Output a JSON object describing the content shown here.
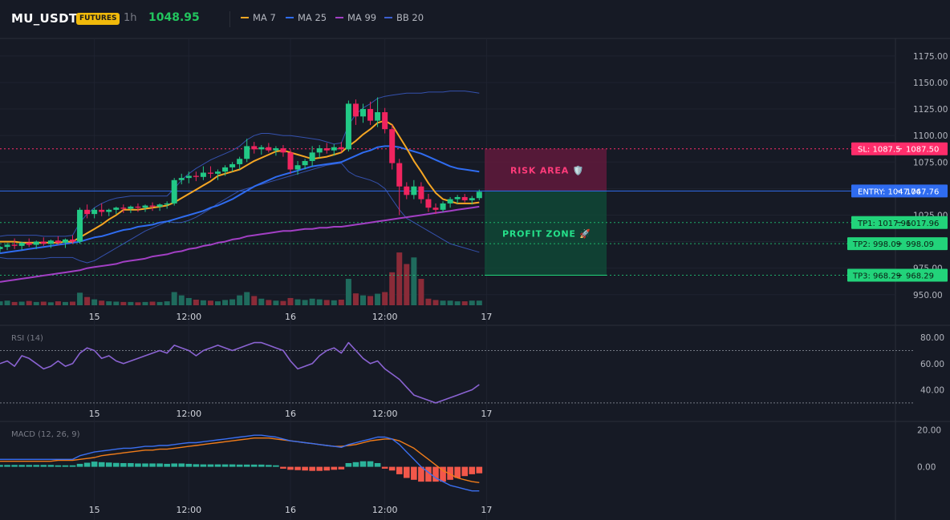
{
  "header": {
    "symbol": "MU_USDT",
    "badge": "FUTURES",
    "interval": "1h",
    "price": "1048.95",
    "legend": [
      {
        "label": "MA 7",
        "color": "#f5a623"
      },
      {
        "label": "MA 25",
        "color": "#2f6cf0"
      },
      {
        "label": "MA 99",
        "color": "#a23fc4"
      },
      {
        "label": "BB 20",
        "color": "#3c5fd0"
      }
    ]
  },
  "colors": {
    "up": "#22c986",
    "down": "#f0245f",
    "vol_up": "#1f6b5d",
    "vol_down": "#8a2b38",
    "rsi": "#8a63d2",
    "macd": "#3b6ff0",
    "signal": "#f07c1a",
    "hist_up": "#2bb39a",
    "hist_down": "#f2574a",
    "sl": "#ff2d6b",
    "entry": "#2f6cf0",
    "tp": "#22d37a"
  },
  "chart_data": [
    {
      "type": "candlestick",
      "title": "MU_USDT 1h",
      "x_ticks": [
        "15",
        "12:00",
        "16",
        "12:00",
        "17"
      ],
      "ylim": [
        940,
        1190
      ],
      "y_ticks": [
        "1175.00",
        "1150.00",
        "1125.00",
        "1100.00",
        "1075.00",
        "1050.00",
        "1025.00",
        "1000.00",
        "975.00",
        "950.00"
      ],
      "candles": [
        [
          993,
          996,
          990,
          995
        ],
        [
          995,
          999,
          992,
          997
        ],
        [
          997,
          1003,
          993,
          996
        ],
        [
          996,
          1000,
          992,
          999
        ],
        [
          999,
          1003,
          995,
          997
        ],
        [
          997,
          1001,
          993,
          1000
        ],
        [
          1000,
          1004,
          996,
          998
        ],
        [
          998,
          1002,
          994,
          1001
        ],
        [
          1001,
          1005,
          997,
          999
        ],
        [
          999,
          1003,
          994,
          1002
        ],
        [
          1002,
          1006,
          998,
          1000
        ],
        [
          1000,
          1032,
          998,
          1030
        ],
        [
          1030,
          1035,
          1022,
          1026
        ],
        [
          1026,
          1032,
          1022,
          1030
        ],
        [
          1030,
          1036,
          1024,
          1028
        ],
        [
          1028,
          1031,
          1024,
          1030
        ],
        [
          1030,
          1033,
          1026,
          1032
        ],
        [
          1032,
          1035,
          1027,
          1031
        ],
        [
          1031,
          1034,
          1027,
          1033
        ],
        [
          1033,
          1036,
          1028,
          1032
        ],
        [
          1032,
          1035,
          1028,
          1034
        ],
        [
          1034,
          1037,
          1029,
          1033
        ],
        [
          1033,
          1036,
          1029,
          1035
        ],
        [
          1035,
          1038,
          1031,
          1036
        ],
        [
          1036,
          1060,
          1034,
          1058
        ],
        [
          1058,
          1064,
          1054,
          1060
        ],
        [
          1060,
          1066,
          1055,
          1062
        ],
        [
          1062,
          1066,
          1057,
          1061
        ],
        [
          1061,
          1071,
          1058,
          1065
        ],
        [
          1065,
          1071,
          1060,
          1064
        ],
        [
          1064,
          1068,
          1058,
          1066
        ],
        [
          1066,
          1072,
          1062,
          1070
        ],
        [
          1070,
          1075,
          1066,
          1073
        ],
        [
          1073,
          1080,
          1068,
          1078
        ],
        [
          1078,
          1097,
          1075,
          1090
        ],
        [
          1090,
          1094,
          1083,
          1087
        ],
        [
          1087,
          1091,
          1082,
          1089
        ],
        [
          1089,
          1093,
          1084,
          1086
        ],
        [
          1086,
          1090,
          1081,
          1088
        ],
        [
          1088,
          1091,
          1080,
          1084
        ],
        [
          1084,
          1087,
          1064,
          1068
        ],
        [
          1068,
          1076,
          1063,
          1072
        ],
        [
          1072,
          1078,
          1068,
          1076
        ],
        [
          1076,
          1090,
          1071,
          1084
        ],
        [
          1084,
          1091,
          1079,
          1088
        ],
        [
          1088,
          1093,
          1083,
          1086
        ],
        [
          1086,
          1092,
          1081,
          1089
        ],
        [
          1089,
          1094,
          1084,
          1087
        ],
        [
          1087,
          1133,
          1085,
          1130
        ],
        [
          1130,
          1134,
          1110,
          1118
        ],
        [
          1118,
          1130,
          1112,
          1125
        ],
        [
          1125,
          1132,
          1110,
          1114
        ],
        [
          1114,
          1136,
          1108,
          1122
        ],
        [
          1122,
          1126,
          1102,
          1106
        ],
        [
          1106,
          1110,
          1068,
          1074
        ],
        [
          1074,
          1078,
          1025,
          1052
        ],
        [
          1052,
          1056,
          1040,
          1044
        ],
        [
          1044,
          1058,
          1040,
          1052
        ],
        [
          1052,
          1056,
          1036,
          1040
        ],
        [
          1040,
          1045,
          1028,
          1032
        ],
        [
          1032,
          1036,
          1026,
          1030
        ],
        [
          1030,
          1038,
          1028,
          1036
        ],
        [
          1036,
          1042,
          1032,
          1040
        ],
        [
          1040,
          1044,
          1036,
          1042
        ],
        [
          1042,
          1045,
          1037,
          1039
        ],
        [
          1039,
          1043,
          1035,
          1041
        ],
        [
          1041,
          1049,
          1039,
          1047
        ]
      ],
      "volume": [
        12,
        14,
        10,
        11,
        13,
        10,
        11,
        9,
        12,
        10,
        11,
        38,
        25,
        18,
        14,
        12,
        11,
        10,
        10,
        9,
        10,
        11,
        10,
        12,
        40,
        30,
        22,
        17,
        15,
        14,
        12,
        16,
        18,
        30,
        40,
        28,
        20,
        16,
        14,
        13,
        22,
        18,
        16,
        20,
        18,
        16,
        15,
        17,
        80,
        36,
        30,
        28,
        35,
        40,
        100,
        160,
        125,
        145,
        80,
        20,
        16,
        14,
        14,
        12,
        12,
        14,
        14
      ],
      "ma7": [
        1000,
        1000,
        1000,
        999,
        999,
        999,
        999,
        999,
        999,
        1000,
        1000,
        1004,
        1008,
        1012,
        1016,
        1021,
        1025,
        1030,
        1030,
        1030,
        1031,
        1032,
        1033,
        1034,
        1037,
        1041,
        1045,
        1049,
        1053,
        1057,
        1062,
        1064,
        1066,
        1068,
        1072,
        1076,
        1079,
        1082,
        1085,
        1086,
        1084,
        1082,
        1080,
        1078,
        1079,
        1080,
        1082,
        1084,
        1090,
        1095,
        1101,
        1106,
        1112,
        1114,
        1110,
        1099,
        1088,
        1076,
        1066,
        1055,
        1046,
        1040,
        1038,
        1036,
        1036,
        1036,
        1037
      ],
      "ma25": [
        989,
        990,
        991,
        992,
        993,
        994,
        995,
        996,
        997,
        998,
        999,
        1000,
        1002,
        1004,
        1005,
        1007,
        1009,
        1011,
        1012,
        1014,
        1015,
        1016,
        1018,
        1019,
        1021,
        1023,
        1025,
        1027,
        1029,
        1032,
        1034,
        1037,
        1040,
        1044,
        1048,
        1052,
        1055,
        1058,
        1061,
        1063,
        1065,
        1067,
        1069,
        1071,
        1072,
        1073,
        1074,
        1075,
        1078,
        1081,
        1084,
        1086,
        1089,
        1090,
        1090,
        1089,
        1087,
        1085,
        1083,
        1080,
        1077,
        1074,
        1071,
        1069,
        1068,
        1067,
        1066
      ],
      "ma99": [
        962,
        963,
        964,
        965,
        966,
        967,
        968,
        969,
        970,
        971,
        972,
        973,
        975,
        976,
        977,
        978,
        979,
        981,
        982,
        983,
        984,
        986,
        987,
        988,
        990,
        991,
        993,
        994,
        996,
        997,
        999,
        1000,
        1002,
        1003,
        1005,
        1006,
        1007,
        1008,
        1009,
        1010,
        1010,
        1011,
        1012,
        1012,
        1013,
        1013,
        1014,
        1014,
        1015,
        1016,
        1017,
        1018,
        1019,
        1020,
        1021,
        1022,
        1023,
        1024,
        1025,
        1026,
        1027,
        1028,
        1029,
        1030,
        1031,
        1032,
        1033
      ],
      "bb_upper": [
        1005,
        1006,
        1006,
        1006,
        1006,
        1006,
        1005,
        1005,
        1005,
        1005,
        1006,
        1018,
        1026,
        1032,
        1036,
        1039,
        1041,
        1042,
        1043,
        1043,
        1043,
        1043,
        1043,
        1043,
        1050,
        1058,
        1064,
        1069,
        1073,
        1077,
        1080,
        1083,
        1086,
        1090,
        1096,
        1100,
        1102,
        1102,
        1101,
        1100,
        1100,
        1099,
        1098,
        1097,
        1096,
        1094,
        1092,
        1093,
        1110,
        1120,
        1126,
        1130,
        1135,
        1137,
        1138,
        1139,
        1140,
        1140,
        1140,
        1141,
        1141,
        1141,
        1142,
        1142,
        1142,
        1141,
        1140
      ],
      "bb_lower": [
        985,
        984,
        984,
        984,
        984,
        984,
        984,
        985,
        985,
        985,
        985,
        982,
        980,
        982,
        986,
        990,
        994,
        998,
        1002,
        1006,
        1010,
        1013,
        1016,
        1019,
        1018,
        1018,
        1020,
        1023,
        1027,
        1031,
        1036,
        1040,
        1044,
        1048,
        1050,
        1052,
        1054,
        1056,
        1058,
        1060,
        1062,
        1064,
        1066,
        1068,
        1070,
        1072,
        1073,
        1074,
        1066,
        1062,
        1060,
        1058,
        1055,
        1050,
        1040,
        1030,
        1022,
        1018,
        1014,
        1010,
        1006,
        1002,
        998,
        996,
        994,
        992,
        990
      ],
      "levels": {
        "sl": {
          "label": "SL: 1087.5",
          "price": "1087.50",
          "value": 1087.5
        },
        "entry": {
          "label": "ENTRY: 1047.76",
          "price": "1047.76",
          "value": 1047.76
        },
        "tp1": {
          "label": "TP1: 1017.96",
          "price": "1017.96",
          "value": 1017.96
        },
        "tp2": {
          "label": "TP2: 998.09",
          "price": "998.09",
          "value": 998.09
        },
        "tp3": {
          "label": "TP3: 968.29",
          "price": "968.29",
          "value": 968.29
        }
      },
      "zones": {
        "risk_label": "RISK AREA 🛡️",
        "profit_label": "PROFIT ZONE 🚀"
      }
    },
    {
      "type": "line",
      "title": "RSI (14)",
      "x_ticks": [
        "15",
        "12:00",
        "16",
        "12:00",
        "17"
      ],
      "ylim": [
        22,
        88
      ],
      "y_ticks": [
        "80.00",
        "60.00",
        "40.00"
      ],
      "levels": [
        70,
        30
      ],
      "values": [
        60,
        62,
        58,
        66,
        64,
        60,
        56,
        58,
        62,
        58,
        60,
        68,
        72,
        70,
        64,
        66,
        62,
        60,
        62,
        64,
        66,
        68,
        70,
        68,
        74,
        72,
        70,
        66,
        70,
        72,
        74,
        72,
        70,
        72,
        74,
        76,
        76,
        74,
        72,
        70,
        62,
        56,
        58,
        60,
        66,
        70,
        72,
        68,
        76,
        70,
        64,
        60,
        62,
        56,
        52,
        48,
        42,
        36,
        34,
        32,
        30,
        32,
        34,
        36,
        38,
        40,
        44
      ]
    },
    {
      "type": "line",
      "title": "MACD (12, 26, 9)",
      "x_ticks": [
        "15",
        "12:00",
        "16",
        "12:00",
        "17"
      ],
      "ylim": [
        -17,
        24
      ],
      "y_ticks": [
        "20.00",
        "0.00"
      ],
      "macd": [
        4,
        4,
        4,
        4,
        4,
        4,
        4,
        4,
        4,
        4,
        4,
        6,
        7,
        8,
        8.5,
        9,
        9.5,
        10,
        10,
        10.5,
        11,
        11,
        11.5,
        11.5,
        12,
        12.5,
        13,
        13,
        13.5,
        14,
        14.5,
        15,
        15.5,
        16,
        16.5,
        17,
        17,
        16.5,
        16,
        15,
        14,
        13.5,
        13,
        12.5,
        12,
        11.5,
        11,
        10.5,
        12,
        13,
        14,
        15,
        16,
        16,
        15,
        12,
        8,
        4,
        0,
        -3,
        -6,
        -8,
        -10,
        -11,
        -12,
        -13,
        -13
      ],
      "signal": [
        3,
        3,
        3,
        3,
        3,
        3,
        3,
        3,
        3.5,
        3.5,
        3.5,
        4,
        4.5,
        5,
        6,
        6.5,
        7,
        7.5,
        8,
        8.5,
        9,
        9,
        9.5,
        9.5,
        10,
        10.5,
        11,
        11.5,
        12,
        12.5,
        13,
        13.5,
        14,
        14.5,
        15,
        15.5,
        15.5,
        15.5,
        15,
        14.5,
        14,
        13.5,
        13,
        12.5,
        12,
        11.5,
        11,
        11,
        11.5,
        12,
        13,
        14,
        14.5,
        15,
        15,
        14,
        12,
        10,
        7,
        4,
        1,
        -2,
        -4,
        -6,
        -7,
        -8,
        -8.5
      ],
      "hist": [
        1,
        1,
        1,
        1,
        1,
        1,
        1,
        1,
        0.8,
        0.8,
        0.8,
        1.6,
        2.2,
        2.8,
        2.5,
        2.3,
        2.1,
        2,
        2,
        1.8,
        1.8,
        1.8,
        1.8,
        1.6,
        1.8,
        1.8,
        1.6,
        1.4,
        1.3,
        1.3,
        1.3,
        1.3,
        1.3,
        1.2,
        1.2,
        1.2,
        1.2,
        1,
        0.8,
        -1,
        -1.6,
        -1.8,
        -2,
        -2.2,
        -2.2,
        -2,
        -1.6,
        -1.4,
        2,
        2.5,
        3,
        3,
        2,
        -1,
        -2,
        -4,
        -6,
        -7,
        -8,
        -8,
        -8,
        -8,
        -7,
        -6,
        -5,
        -4,
        -3.5
      ]
    }
  ]
}
